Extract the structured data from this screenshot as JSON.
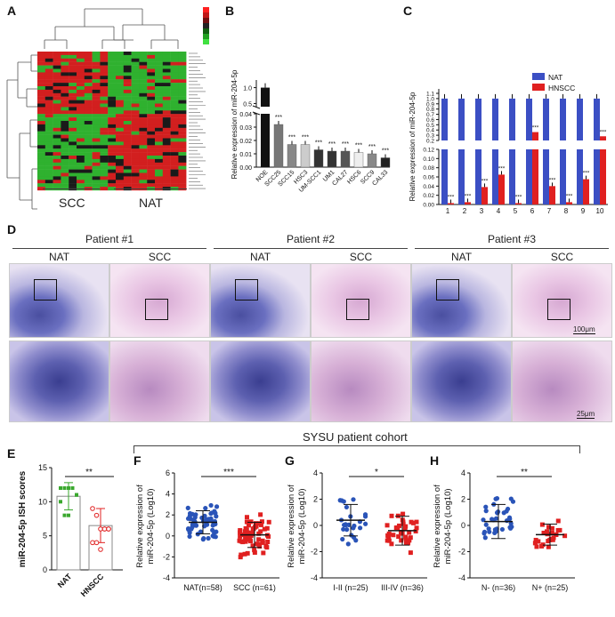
{
  "panels": {
    "A": "A",
    "B": "B",
    "C": "C",
    "D": "D",
    "E": "E",
    "F": "F",
    "G": "G",
    "H": "H"
  },
  "heatmap": {
    "group_left": "SCC",
    "group_right": "NAT",
    "colors": {
      "high": "#d21f1f",
      "mid": "#1a1a1a",
      "low": "#2fb12f"
    }
  },
  "chart_data": [
    {
      "panel": "B",
      "type": "bar",
      "ylabel": "Relative expression of miR-204-5p",
      "categories": [
        "NOE",
        "SCC25",
        "SCC15",
        "HSC3",
        "UM-SCC1",
        "UM1",
        "CAL27",
        "HSC6",
        "SCC9",
        "CAL33"
      ],
      "values": [
        1.0,
        0.032,
        0.017,
        0.017,
        0.013,
        0.012,
        0.012,
        0.011,
        0.01,
        0.007
      ],
      "significance": [
        "",
        "***",
        "***",
        "***",
        "***",
        "***",
        "***",
        "***",
        "***",
        "***"
      ],
      "ylim_lower": [
        0,
        0.04
      ],
      "ylim_upper": [
        0.5,
        1.0
      ],
      "yticks_lower": [
        "0.00",
        "0.01",
        "0.02",
        "0.03",
        "0.04"
      ],
      "yticks_upper": [
        "0.5",
        "1.0"
      ]
    },
    {
      "panel": "C",
      "type": "bar",
      "ylabel": "Relative expression of miR-204-5p",
      "categories": [
        "1",
        "2",
        "3",
        "4",
        "5",
        "6",
        "7",
        "8",
        "9",
        "10"
      ],
      "series": [
        {
          "name": "NAT",
          "color": "#3b4fc4",
          "values": [
            1,
            1,
            1,
            1,
            1,
            1,
            1,
            1,
            1,
            1
          ]
        },
        {
          "name": "HNSCC",
          "color": "#e02020",
          "values": [
            0.003,
            0.005,
            0.038,
            0.065,
            0.003,
            0.36,
            0.04,
            0.005,
            0.055,
            0.28
          ]
        }
      ],
      "significance": [
        "***",
        "***",
        "***",
        "***",
        "***",
        "***",
        "***",
        "***",
        "***",
        "***"
      ],
      "yticks_upper": [
        "0.2",
        "0.3",
        "0.4",
        "0.5",
        "0.6",
        "0.7",
        "0.8",
        "0.9",
        "1.0",
        "1.1"
      ],
      "yticks_lower": [
        "0.00",
        "0.02",
        "0.04",
        "0.06",
        "0.08",
        "0.10",
        "0.12"
      ]
    },
    {
      "panel": "E",
      "type": "bar",
      "ylabel": "miR-204-5p ISH scores",
      "categories": [
        "NAT",
        "HNSCC"
      ],
      "values": [
        10.8,
        6.5
      ],
      "sd": [
        2.0,
        2.5
      ],
      "points": [
        [
          12,
          12,
          12,
          12,
          11,
          10,
          8,
          8,
          12,
          11
        ],
        [
          9,
          8,
          6,
          6,
          6,
          4,
          4,
          3,
          6,
          6
        ]
      ],
      "significance": "**",
      "ylim": [
        0,
        15
      ],
      "yticks": [
        "0",
        "5",
        "10",
        "15"
      ]
    },
    {
      "panel": "F",
      "type": "scatter",
      "ylabel": "Relative expression of miR-204-5p (Log10)",
      "categories": [
        "NAT(n=58)",
        "SCC (n=61)"
      ],
      "means": [
        1.3,
        0.1
      ],
      "sd": [
        1.1,
        1.2
      ],
      "significance": "***",
      "ylim": [
        -4,
        6
      ],
      "yticks": [
        "-4",
        "-2",
        "0",
        "2",
        "4",
        "6"
      ]
    },
    {
      "panel": "G",
      "type": "scatter",
      "ylabel": "Relative expression of miR-204-5p (Log10)",
      "categories": [
        "I-II (n=25)",
        "III-IV (n=36)"
      ],
      "means": [
        0.4,
        -0.4
      ],
      "sd": [
        1.2,
        1.1
      ],
      "significance": "*",
      "ylim": [
        -4,
        4
      ],
      "yticks": [
        "-4",
        "-2",
        "0",
        "2",
        "4"
      ]
    },
    {
      "panel": "H",
      "type": "scatter",
      "ylabel": "Relative expression of miR-204-5p (Log10)",
      "categories": [
        "N- (n=36)",
        "N+ (n=25)"
      ],
      "means": [
        0.3,
        -0.7
      ],
      "sd": [
        1.3,
        0.8
      ],
      "significance": "**",
      "ylim": [
        -4,
        4
      ],
      "yticks": [
        "-4",
        "-2",
        "0",
        "2",
        "4"
      ]
    }
  ],
  "legendC": {
    "nat": "NAT",
    "hnscc": "HNSCC"
  },
  "patients": [
    {
      "title": "Patient #1",
      "nat": "NAT",
      "scc": "SCC"
    },
    {
      "title": "Patient #2",
      "nat": "NAT",
      "scc": "SCC"
    },
    {
      "title": "Patient #3",
      "nat": "NAT",
      "scc": "SCC"
    }
  ],
  "scalebars": {
    "top": "100μm",
    "bottom": "25μm"
  },
  "cohort_title": "SYSU patient cohort"
}
